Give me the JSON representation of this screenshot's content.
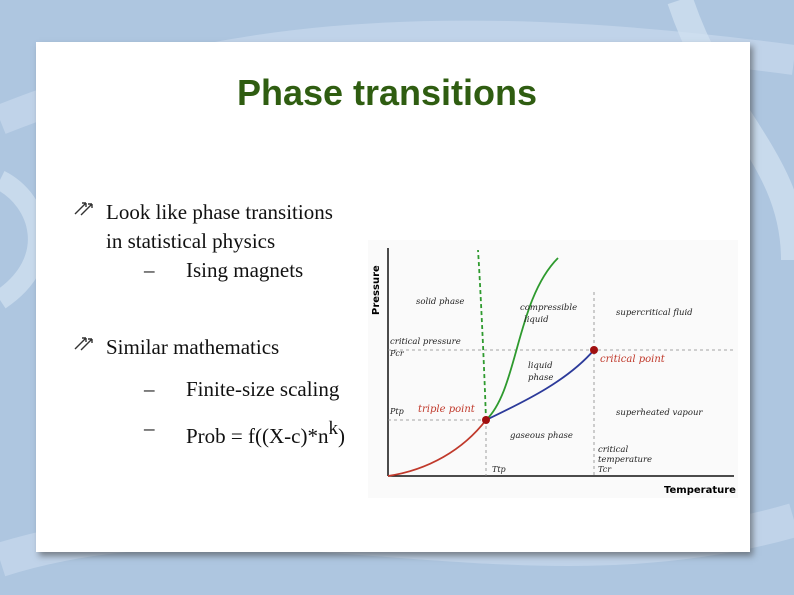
{
  "slide": {
    "title": "Phase transitions",
    "bullets": [
      {
        "line1": "Look like phase transitions",
        "line2": "in statistical physics"
      },
      {
        "line1": "Similar mathematics"
      }
    ],
    "sub_bullets": {
      "dash": "–",
      "ising": "Ising magnets",
      "finite_size": "Finite-size scaling",
      "prob_prefix": "Prob = f((X-c)*n",
      "prob_exp": "k",
      "prob_suffix": ")"
    }
  },
  "diagram": {
    "y_axis_label": "Pressure",
    "x_axis_label": "Temperature",
    "regions": {
      "solid": "solid phase",
      "compressible1": "compressible",
      "compressible2": "liquid",
      "supercritical": "supercritical fluid",
      "liquid1": "liquid",
      "liquid2": "phase",
      "superheated": "superheated vapour",
      "gaseous": "gaseous phase"
    },
    "labels": {
      "critical_pressure": "critical pressure",
      "p_cr": "Pcr",
      "p_tp": "Ptp",
      "triple_point": "triple point",
      "critical_point": "critical point",
      "critical_temp1": "critical",
      "critical_temp2": "temperature",
      "t_cr": "Tcr",
      "t_tp": "Ttp"
    },
    "colors": {
      "solid_liquid": "#2e9a2e",
      "liquid_gas": "#2c3a9a",
      "solid_gas": "#c0392b",
      "points": "#a01010",
      "point_labels": "#c0392b"
    }
  }
}
